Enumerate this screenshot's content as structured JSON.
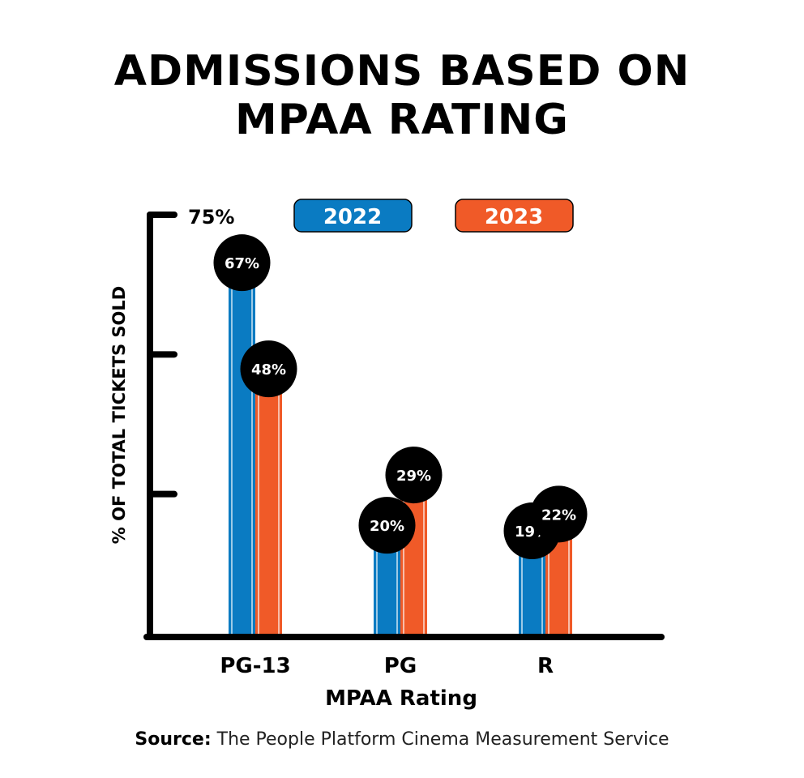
{
  "title_line1": "ADMISSIONS BASED ON",
  "title_line2": "MPAA RATING",
  "source_label": "Source:",
  "source_text": "The People Platform Cinema Measurement Service",
  "chart_data": {
    "type": "bar",
    "title": "ADMISSIONS BASED ON MPAA RATING",
    "xlabel": "MPAA Rating",
    "ylabel": "% OF TOTAL TICKETS SOLD",
    "categories": [
      "PG-13",
      "PG",
      "R"
    ],
    "series": [
      {
        "name": "2022",
        "values": [
          67,
          20,
          19
        ],
        "color": "#0a7bc2"
      },
      {
        "name": "2023",
        "values": [
          48,
          29,
          22
        ],
        "color": "#f05a28"
      }
    ],
    "data_labels": [
      [
        "67%",
        "20%",
        "19%"
      ],
      [
        "48%",
        "29%",
        "22%"
      ]
    ],
    "ylim": [
      0,
      75
    ],
    "yticks": [
      25,
      50,
      75
    ],
    "ytick_label_top": "75%",
    "legend_placement": "top",
    "grid": false
  }
}
